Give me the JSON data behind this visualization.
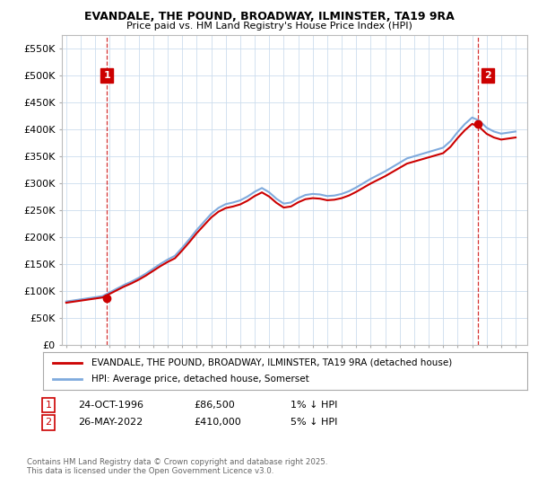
{
  "title1": "EVANDALE, THE POUND, BROADWAY, ILMINSTER, TA19 9RA",
  "title2": "Price paid vs. HM Land Registry's House Price Index (HPI)",
  "hpi_x": [
    1994,
    1994.5,
    1995,
    1995.5,
    1996,
    1996.5,
    1997,
    1997.5,
    1998,
    1998.5,
    1999,
    1999.5,
    2000,
    2000.5,
    2001,
    2001.5,
    2002,
    2002.5,
    2003,
    2003.5,
    2004,
    2004.5,
    2005,
    2005.5,
    2006,
    2006.5,
    2007,
    2007.5,
    2008,
    2008.5,
    2009,
    2009.5,
    2010,
    2010.5,
    2011,
    2011.5,
    2012,
    2012.5,
    2013,
    2013.5,
    2014,
    2014.5,
    2015,
    2015.5,
    2016,
    2016.5,
    2017,
    2017.5,
    2018,
    2018.5,
    2019,
    2019.5,
    2020,
    2020.5,
    2021,
    2021.5,
    2022,
    2022.5,
    2023,
    2023.5,
    2024,
    2024.5,
    2025
  ],
  "hpi_y": [
    80000,
    82000,
    84000,
    86000,
    88000,
    90000,
    97000,
    104000,
    111000,
    117000,
    124000,
    132000,
    141000,
    150000,
    158000,
    165000,
    180000,
    196000,
    213000,
    228000,
    243000,
    254000,
    261000,
    264000,
    268000,
    275000,
    284000,
    291000,
    283000,
    271000,
    262000,
    264000,
    272000,
    278000,
    280000,
    279000,
    276000,
    277000,
    280000,
    285000,
    292000,
    300000,
    308000,
    315000,
    322000,
    330000,
    338000,
    346000,
    350000,
    354000,
    358000,
    362000,
    366000,
    378000,
    395000,
    410000,
    422000,
    416000,
    403000,
    396000,
    392000,
    394000,
    396000
  ],
  "sale1_x": 1996.8,
  "sale1_y": 86500,
  "sale2_x": 2022.37,
  "sale2_y": 410000,
  "annotation1_date": "24-OCT-1996",
  "annotation1_price": "£86,500",
  "annotation1_hpi": "1% ↓ HPI",
  "annotation2_date": "26-MAY-2022",
  "annotation2_price": "£410,000",
  "annotation2_hpi": "5% ↓ HPI",
  "line_color_hpi": "#7faadd",
  "line_color_price": "#cc0000",
  "dashed_color": "#cc0000",
  "background_color": "#ffffff",
  "grid_color": "#ccddee",
  "legend_label1": "EVANDALE, THE POUND, BROADWAY, ILMINSTER, TA19 9RA (detached house)",
  "legend_label2": "HPI: Average price, detached house, Somerset",
  "footer": "Contains HM Land Registry data © Crown copyright and database right 2025.\nThis data is licensed under the Open Government Licence v3.0.",
  "xlim": [
    1993.7,
    2025.8
  ],
  "ylim": [
    0,
    575000
  ],
  "yticks": [
    0,
    50000,
    100000,
    150000,
    200000,
    250000,
    300000,
    350000,
    400000,
    450000,
    500000,
    550000
  ],
  "ytick_labels": [
    "£0",
    "£50K",
    "£100K",
    "£150K",
    "£200K",
    "£250K",
    "£300K",
    "£350K",
    "£400K",
    "£450K",
    "£500K",
    "£550K"
  ]
}
